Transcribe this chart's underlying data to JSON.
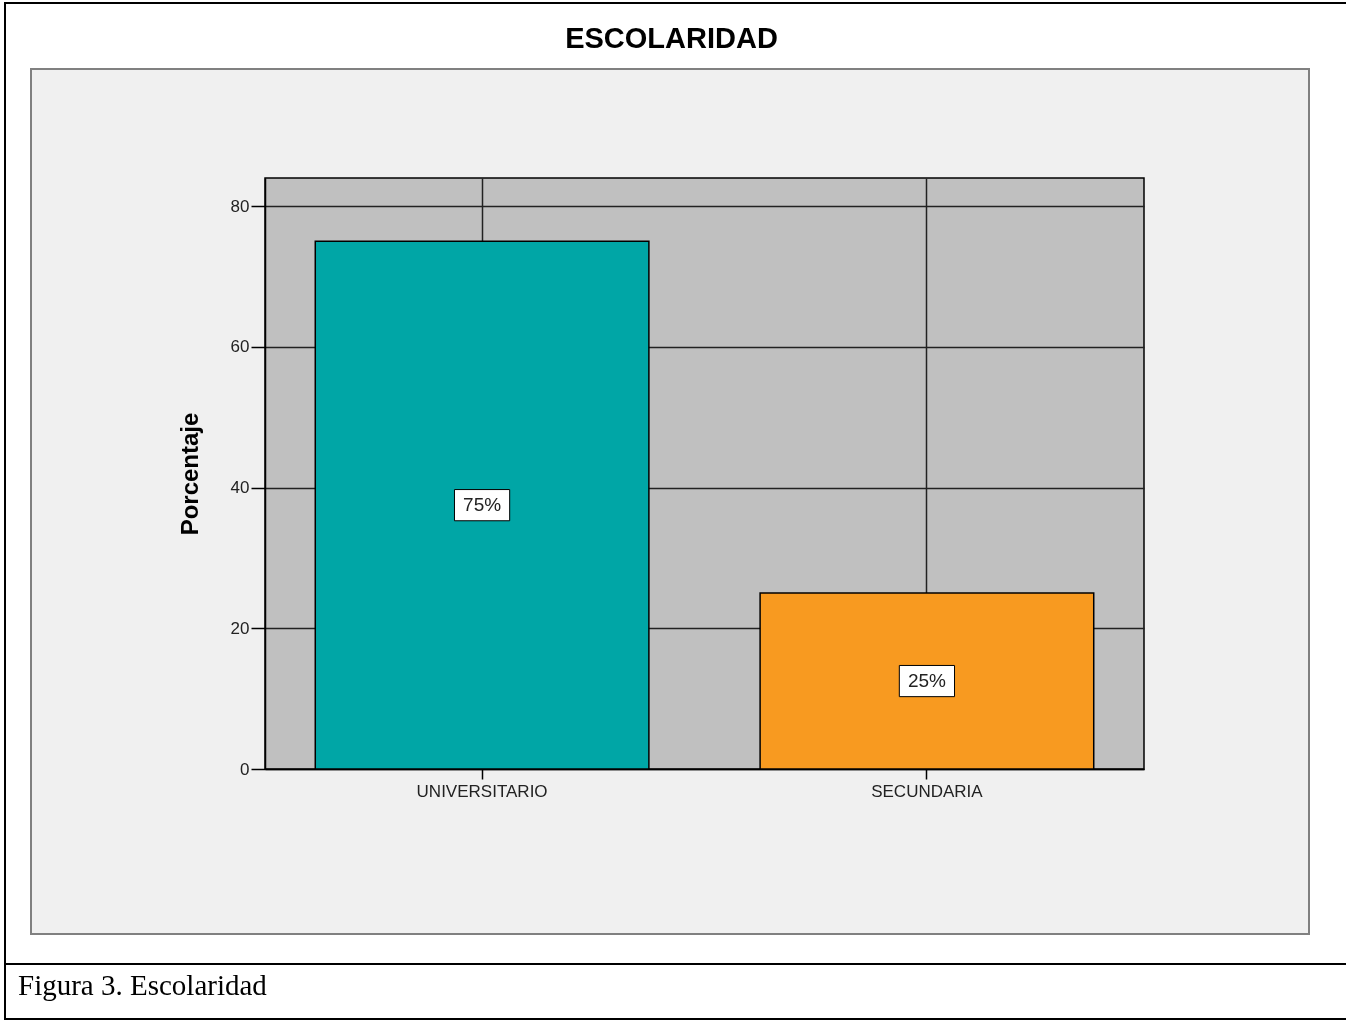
{
  "chart_data": {
    "type": "bar",
    "title": "ESCOLARIDAD",
    "ylabel": "Porcentaje",
    "categories": [
      "UNIVERSITARIO",
      "SECUNDARIA"
    ],
    "values": [
      75,
      25
    ],
    "colors": [
      "#00a6a6",
      "#f89a20"
    ],
    "value_labels": [
      "75%",
      "25%"
    ],
    "ylim": [
      0,
      84
    ],
    "yticks": [
      0,
      20,
      40,
      60,
      80
    ],
    "grid": true,
    "annotations": [
      "Figura 3. Escolaridad"
    ]
  }
}
